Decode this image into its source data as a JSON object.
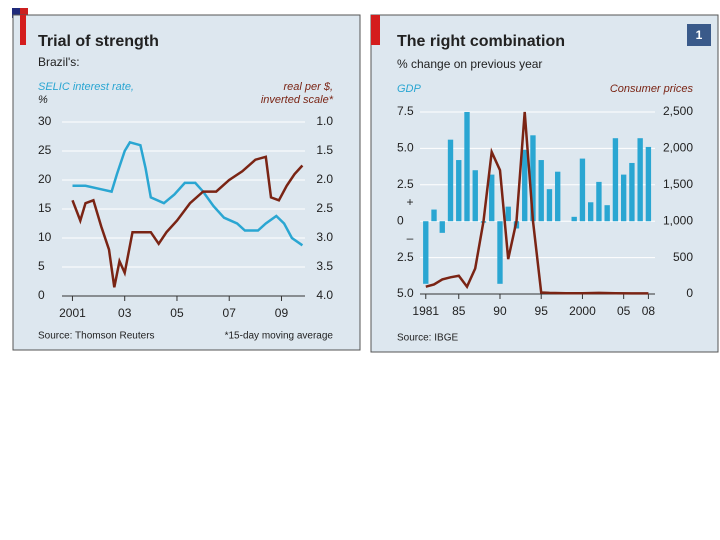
{
  "chart_data": [
    {
      "type": "line",
      "title": "Trial of strength",
      "subtitle": "Brazil's:",
      "ylabel": "%",
      "y2label": "inverted scale*",
      "source": "Source: Thomson Reuters",
      "note": "*15-day moving average",
      "xlim": [
        2000.6,
        2009.9
      ],
      "xticks": [
        2001,
        {
          "value": 2003,
          "label": "03"
        },
        {
          "value": 2005,
          "label": "05"
        },
        {
          "value": 2007,
          "label": "07"
        },
        {
          "value": 2009,
          "label": "09"
        }
      ],
      "ylim": [
        0,
        30
      ],
      "yticks": [
        0,
        5,
        10,
        15,
        20,
        25,
        30
      ],
      "y2lim": [
        4,
        1
      ],
      "y2ticks": [
        {
          "value": 1,
          "label": "1.0"
        },
        1.5,
        {
          "value": 2,
          "label": "2.0"
        },
        2.5,
        {
          "value": 3,
          "label": "3.0"
        },
        3.5,
        {
          "value": 4,
          "label": "4.0"
        }
      ],
      "series": [
        {
          "name": "SELIC interest rate,",
          "color": "#2aa6d2",
          "x": [
            2001,
            2001.5,
            2002,
            2002.5,
            2002.7,
            2003,
            2003.2,
            2003.6,
            2003.8,
            2004,
            2004.5,
            2004.9,
            2005.3,
            2005.7,
            2006,
            2006.4,
            2006.8,
            2007.3,
            2007.6,
            2008.1,
            2008.4,
            2008.8,
            2009.1,
            2009.4,
            2009.8
          ],
          "values": [
            19,
            19,
            18.5,
            18,
            21,
            25,
            26.5,
            26,
            22,
            17,
            16,
            17.5,
            19.5,
            19.5,
            18,
            15.5,
            13.5,
            12.5,
            11.3,
            11.3,
            12.5,
            13.8,
            12.5,
            10,
            8.75
          ]
        },
        {
          "name": "real per $,",
          "color": "#7a2414",
          "axis": "y2",
          "x": [
            2001,
            2001.3,
            2001.5,
            2001.8,
            2002.1,
            2002.4,
            2002.6,
            2002.8,
            2003,
            2003.3,
            2003.6,
            2004,
            2004.3,
            2004.6,
            2005,
            2005.5,
            2006,
            2006.5,
            2007,
            2007.5,
            2008,
            2008.4,
            2008.6,
            2008.9,
            2009.2,
            2009.5,
            2009.8
          ],
          "values": [
            2.35,
            2.7,
            2.4,
            2.35,
            2.8,
            3.2,
            3.85,
            3.4,
            3.6,
            2.9,
            2.9,
            2.9,
            3.1,
            2.9,
            2.7,
            2.4,
            2.2,
            2.2,
            2,
            1.85,
            1.65,
            1.6,
            2.3,
            2.35,
            2.1,
            1.9,
            1.75
          ]
        }
      ]
    },
    {
      "type": "bar",
      "badge": "1",
      "title": "The right combination",
      "subtitle": "% change on previous year",
      "source": "Source: IBGE",
      "sign_labels": [
        "+",
        "–"
      ],
      "x": [
        1981,
        1982,
        1983,
        1984,
        1985,
        1986,
        1987,
        1988,
        1989,
        1990,
        1991,
        1992,
        1993,
        1994,
        1995,
        1996,
        1997,
        1998,
        1999,
        2000,
        2001,
        2002,
        2003,
        2004,
        2005,
        2006,
        2007,
        2008
      ],
      "xlim": [
        1980.3,
        2008.8
      ],
      "xticks": [
        1981,
        {
          "value": 1985,
          "label": "85"
        },
        {
          "value": 1990,
          "label": "90"
        },
        {
          "value": 1995,
          "label": "95"
        },
        2000,
        {
          "value": 2005,
          "label": "05"
        },
        {
          "value": 2008,
          "label": "08"
        }
      ],
      "ylim": [
        -5,
        7.5
      ],
      "yticks": [
        7.5,
        {
          "value": 5,
          "label": "5.0"
        },
        2.5,
        0,
        {
          "value": -2.5,
          "label": "2.5"
        },
        {
          "value": -5,
          "label": "5.0"
        }
      ],
      "y2lim": [
        0,
        2500
      ],
      "y2ticks": [
        {
          "value": 2500,
          "label": "2,500"
        },
        {
          "value": 2000,
          "label": "2,000"
        },
        {
          "value": 1500,
          "label": "1,500"
        },
        {
          "value": 1000,
          "label": "1,000"
        },
        500,
        0
      ],
      "series": [
        {
          "name": "GDP",
          "color": "#2aa6d2",
          "type": "bar",
          "values": [
            -4.3,
            0.8,
            -0.8,
            5.6,
            4.2,
            7.5,
            3.5,
            -0.1,
            3.2,
            -4.3,
            1,
            -0.5,
            4.9,
            5.9,
            4.2,
            2.2,
            3.4,
            0,
            0.3,
            4.3,
            1.3,
            2.7,
            1.1,
            5.7,
            3.2,
            4,
            5.7,
            5.1
          ]
        },
        {
          "name": "Consumer prices",
          "color": "#7a2414",
          "type": "line",
          "axis": "y2",
          "x": [
            1981,
            1982,
            1983,
            1984,
            1985,
            1986,
            1987,
            1988,
            1989,
            1990,
            1991,
            1992,
            1993,
            1994,
            1995,
            1996,
            1998,
            2000,
            2002,
            2004,
            2006,
            2008
          ],
          "values": [
            100,
            130,
            200,
            230,
            250,
            100,
            350,
            1000,
            1950,
            1700,
            480,
            1000,
            2500,
            1000,
            20,
            15,
            10,
            10,
            15,
            10,
            8,
            8
          ]
        }
      ]
    }
  ]
}
